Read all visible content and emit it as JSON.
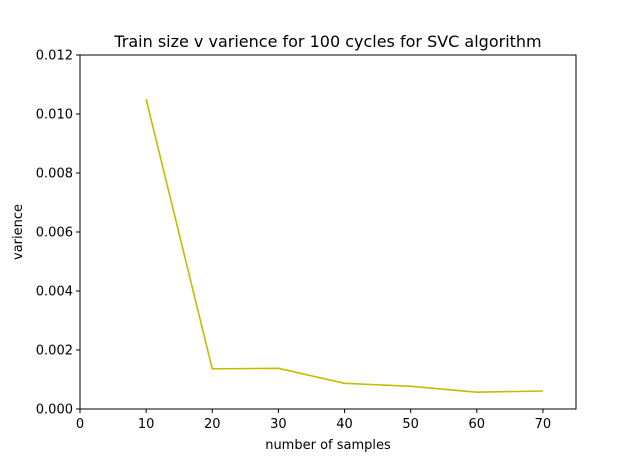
{
  "chart_data": {
    "type": "line",
    "title": "Train size v varience for 100 cycles for SVC algorithm",
    "xlabel": "number of samples",
    "ylabel": "varience",
    "xlim": [
      0,
      75
    ],
    "ylim": [
      0,
      0.012
    ],
    "xticks": [
      0,
      10,
      20,
      30,
      40,
      50,
      60,
      70
    ],
    "yticks": [
      0,
      0.002,
      0.004,
      0.006,
      0.008,
      0.01,
      0.012
    ],
    "xtick_labels": [
      "0",
      "10",
      "20",
      "30",
      "40",
      "50",
      "60",
      "70"
    ],
    "ytick_labels": [
      "0.000",
      "0.002",
      "0.004",
      "0.006",
      "0.008",
      "0.010",
      "0.012"
    ],
    "grid": false,
    "series": [
      {
        "color": "#bfbf00",
        "x": [
          10,
          20,
          30,
          40,
          50,
          60,
          70
        ],
        "y": [
          0.0105,
          0.00136,
          0.00138,
          0.00087,
          0.00077,
          0.00057,
          0.00061
        ]
      }
    ]
  }
}
